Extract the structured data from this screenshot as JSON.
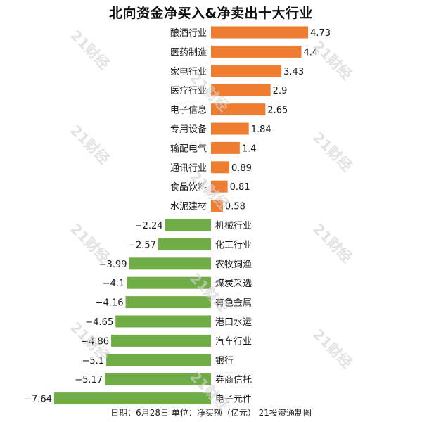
{
  "title": "北向资金净买入&净卖出十大行业",
  "footer": "日期：6月28日 单位：净买额（亿元） 21投资通制图",
  "watermark": "21财经",
  "colors": {
    "buy": "#ee7d32",
    "sell": "#70ad47"
  },
  "chart_data": {
    "type": "bar",
    "orientation": "horizontal",
    "title": "北向资金净买入&净卖出十大行业",
    "categories": [
      "酿酒行业",
      "医药制造",
      "家电行业",
      "医疗行业",
      "电子信息",
      "专用设备",
      "输配电气",
      "通讯行业",
      "食品饮料",
      "水泥建材",
      "机械行业",
      "化工行业",
      "农牧饲渔",
      "煤炭采选",
      "有色金属",
      "港口水运",
      "汽车行业",
      "银行",
      "券商信托",
      "电子元件"
    ],
    "values": [
      4.73,
      4.4,
      3.43,
      2.9,
      2.65,
      1.84,
      1.4,
      0.89,
      0.81,
      0.58,
      -2.24,
      -2.57,
      -3.99,
      -4.1,
      -4.16,
      -4.65,
      -4.86,
      -5.1,
      -5.17,
      -7.64
    ],
    "value_labels": [
      "4.73",
      "4.4",
      "3.43",
      "2.9",
      "2.65",
      "1.84",
      "1.4",
      "0.89",
      "0.81",
      "0.58",
      "−2.24",
      "−2.57",
      "−3.99",
      "−4.1",
      "−4.16",
      "−4.65",
      "−4.86",
      "−5.1",
      "−5.17",
      "−7.64"
    ],
    "grid": false,
    "legend": "none"
  }
}
